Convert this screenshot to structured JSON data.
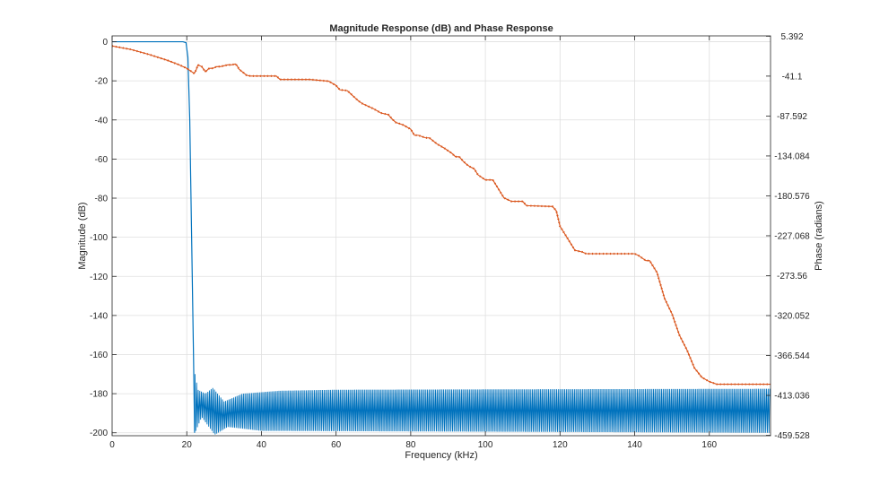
{
  "chart_data": {
    "type": "line",
    "title": "Magnitude Response (dB) and Phase Response",
    "xlabel": "Frequency (kHz)",
    "ylabel_left": "Magnitude (dB)",
    "ylabel_right": "Phase (radians)",
    "xlim": [
      0,
      176.4
    ],
    "ylim_left": [
      -201.5,
      3
    ],
    "ylim_right": [
      -460,
      5.8
    ],
    "x_ticks": [
      "0",
      "20",
      "40",
      "60",
      "80",
      "100",
      "120",
      "140",
      "160"
    ],
    "x_tick_values": [
      0,
      20,
      40,
      60,
      80,
      100,
      120,
      140,
      160
    ],
    "y_left_ticks": [
      "0",
      "-20",
      "-40",
      "-60",
      "-80",
      "-100",
      "-120",
      "-140",
      "-160",
      "-180",
      "-200"
    ],
    "y_left_tick_values": [
      0,
      -20,
      -40,
      -60,
      -80,
      -100,
      -120,
      -140,
      -160,
      -180,
      -200
    ],
    "y_right_ticks": [
      "5.392",
      "-41.1",
      "-87.592",
      "-134.084",
      "-180.576",
      "-227.068",
      "-273.56",
      "-320.052",
      "-366.544",
      "-413.036",
      "-459.528"
    ],
    "y_right_tick_values": [
      5.392,
      -41.1,
      -87.592,
      -134.084,
      -180.576,
      -227.068,
      -273.56,
      -320.052,
      -366.544,
      -413.036,
      -459.528
    ],
    "grid": true,
    "series": [
      {
        "axis": "left",
        "color": "#0072BD",
        "kind": "magnitude",
        "passband": {
          "x": [
            0,
            19,
            19.8,
            20.3,
            20.8,
            21.3,
            21.8,
            22.1
          ],
          "y": [
            0,
            0,
            -0.5,
            -8,
            -40,
            -100,
            -160,
            -200
          ]
        },
        "stopband": {
          "start": 22.2,
          "end": 176.4,
          "envelope": [
            [
              22.2,
              -170
            ],
            [
              23,
              -178
            ],
            [
              25,
              -180
            ],
            [
              27,
              -177
            ],
            [
              30,
              -184
            ],
            [
              35,
              -180
            ],
            [
              45,
              -178.5
            ],
            [
              60,
              -178
            ],
            [
              100,
              -177.8
            ],
            [
              176.4,
              -177.5
            ]
          ],
          "floor": [
            [
              22.2,
              -200
            ],
            [
              24,
              -192
            ],
            [
              27.5,
              -201
            ],
            [
              31,
              -197
            ],
            [
              40,
              -199
            ],
            [
              176.4,
              -200
            ]
          ]
        }
      },
      {
        "axis": "right",
        "color": "#D95319",
        "kind": "phase",
        "x": [
          0,
          5,
          10,
          15,
          18,
          20,
          21,
          22,
          22.5,
          23,
          24,
          25,
          26,
          27,
          28,
          29,
          30,
          31,
          32,
          33,
          33.5,
          34,
          36,
          37,
          44,
          45,
          46,
          53,
          58,
          60,
          61,
          63,
          64,
          65,
          66,
          67,
          68,
          70,
          72,
          74,
          75,
          76,
          78,
          80,
          81,
          82,
          84,
          85,
          87,
          89,
          91,
          92,
          93,
          94,
          95,
          96,
          97,
          98,
          100,
          102,
          103,
          105,
          107,
          110,
          111,
          118,
          119,
          120,
          122,
          124,
          126,
          127,
          140,
          141,
          143,
          144,
          146,
          148,
          150,
          152,
          154,
          156,
          158,
          160,
          162,
          176.4
        ],
        "y": [
          -6,
          -10,
          -16,
          -23,
          -28,
          -32,
          -35,
          -38,
          -34,
          -28,
          -30,
          -36,
          -32,
          -32,
          -30,
          -30,
          -29,
          -28,
          -28,
          -27,
          -29,
          -33,
          -40,
          -41,
          -41,
          -45,
          -45,
          -45,
          -47,
          -52,
          -57,
          -58,
          -62,
          -66,
          -70,
          -73,
          -75,
          -79,
          -84,
          -86,
          -91,
          -95,
          -98,
          -103,
          -110,
          -110,
          -113,
          -113,
          -120,
          -125,
          -131,
          -135,
          -135,
          -140,
          -144,
          -147,
          -149,
          -156,
          -162,
          -162,
          -169,
          -183,
          -187,
          -187,
          -192,
          -193,
          -198,
          -216,
          -230,
          -244,
          -246,
          -248,
          -248,
          -250,
          -256,
          -256,
          -270,
          -300,
          -318,
          -343,
          -360,
          -381,
          -392,
          -397,
          -400,
          -400
        ]
      }
    ]
  }
}
